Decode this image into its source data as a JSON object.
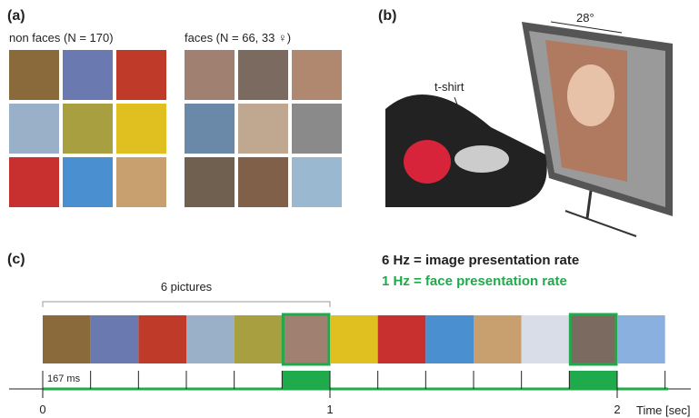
{
  "panel_a": {
    "label": "(a)",
    "non_faces": "non faces (N = 170)",
    "faces": "faces (N = 66, 33 ♀)"
  },
  "panel_b": {
    "label": "(b)",
    "angle": "28°",
    "tshirt": "t-shirt"
  },
  "panel_c": {
    "label": "(c)",
    "rate_image_bold": "6 Hz",
    "rate_image_rest": "= image presentation rate",
    "rate_face": "1 Hz = face presentation rate",
    "pictures": "6 pictures",
    "duration": "167 ms",
    "time_labels": [
      "0",
      "1",
      "2"
    ],
    "time_axis": "Time [sec]"
  }
}
